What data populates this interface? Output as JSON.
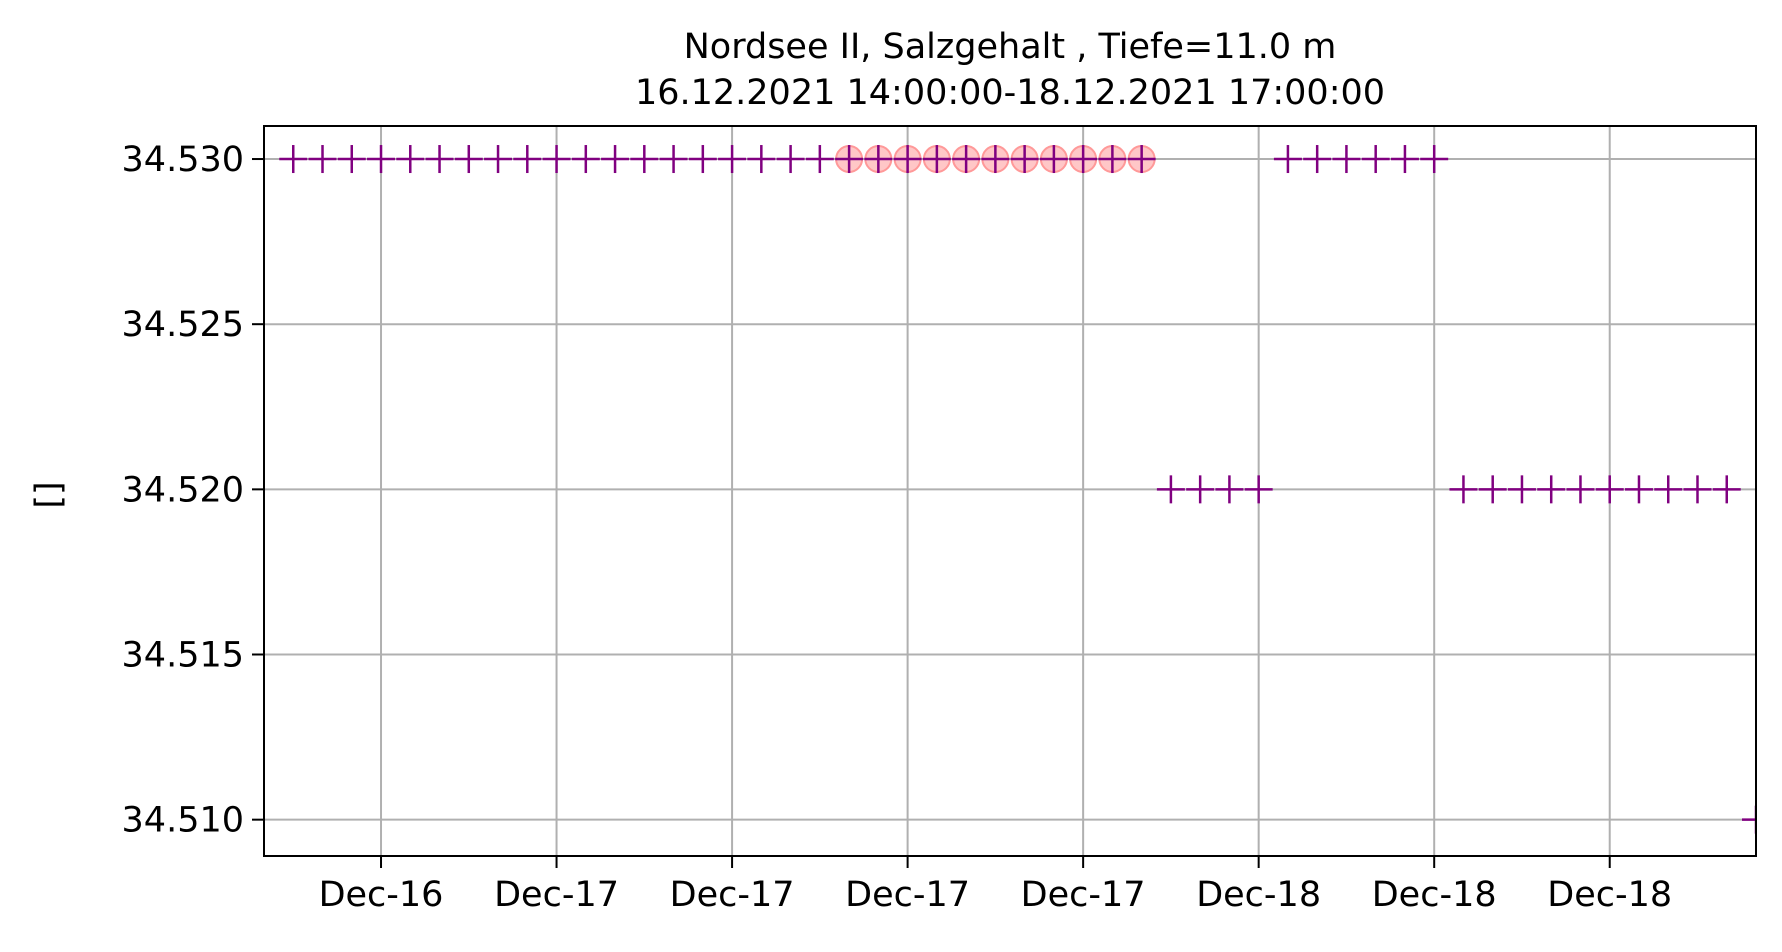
{
  "chart_data": {
    "type": "scatter",
    "title": "Nordsee II, Salzgehalt , Tiefe=11.0 m",
    "subtitle": "16.12.2021 14:00:00-18.12.2021 17:00:00",
    "xlabel": "",
    "ylabel": "[]",
    "x_tick_labels": [
      "Dec-16",
      "Dec-17",
      "Dec-17",
      "Dec-17",
      "Dec-17",
      "Dec-18",
      "Dec-18",
      "Dec-18"
    ],
    "x_unit": "hours",
    "x_tick_values": [
      10,
      16,
      22,
      28,
      34,
      40,
      46,
      52
    ],
    "xlim": [
      6,
      57
    ],
    "y_tick_labels": [
      "34.510",
      "34.515",
      "34.520",
      "34.525",
      "34.530"
    ],
    "y_tick_values": [
      34.51,
      34.515,
      34.52,
      34.525,
      34.53
    ],
    "ylim": [
      34.5089,
      34.531
    ],
    "grid": true,
    "colors": {
      "marker": "#800080",
      "flag": "#ff9999",
      "grid": "#b0b0b0"
    },
    "series": [
      {
        "marker": "plus",
        "x": [
          7,
          8,
          9,
          10,
          11,
          12,
          13,
          14,
          15,
          16,
          17,
          18,
          19,
          20,
          21,
          22,
          23,
          24,
          25,
          26,
          27,
          28,
          29,
          30,
          31,
          32,
          33,
          34,
          35,
          36,
          37,
          38,
          39,
          40,
          41,
          42,
          43,
          44,
          45,
          46,
          47,
          48,
          49,
          50,
          51,
          52,
          53,
          54,
          55,
          56,
          57
        ],
        "y": [
          34.53,
          34.53,
          34.53,
          34.53,
          34.53,
          34.53,
          34.53,
          34.53,
          34.53,
          34.53,
          34.53,
          34.53,
          34.53,
          34.53,
          34.53,
          34.53,
          34.53,
          34.53,
          34.53,
          34.53,
          34.53,
          34.53,
          34.53,
          34.53,
          34.53,
          34.53,
          34.53,
          34.53,
          34.53,
          34.53,
          34.52,
          34.52,
          34.52,
          34.52,
          34.53,
          34.53,
          34.53,
          34.53,
          34.53,
          34.53,
          34.52,
          34.52,
          34.52,
          34.52,
          34.52,
          34.52,
          34.52,
          34.52,
          34.52,
          34.52,
          34.51
        ]
      },
      {
        "marker": "circle",
        "x": [
          26,
          27,
          28,
          29,
          30,
          31,
          32,
          33,
          34,
          35,
          36
        ],
        "y": [
          34.53,
          34.53,
          34.53,
          34.53,
          34.53,
          34.53,
          34.53,
          34.53,
          34.53,
          34.53,
          34.53
        ]
      }
    ]
  }
}
